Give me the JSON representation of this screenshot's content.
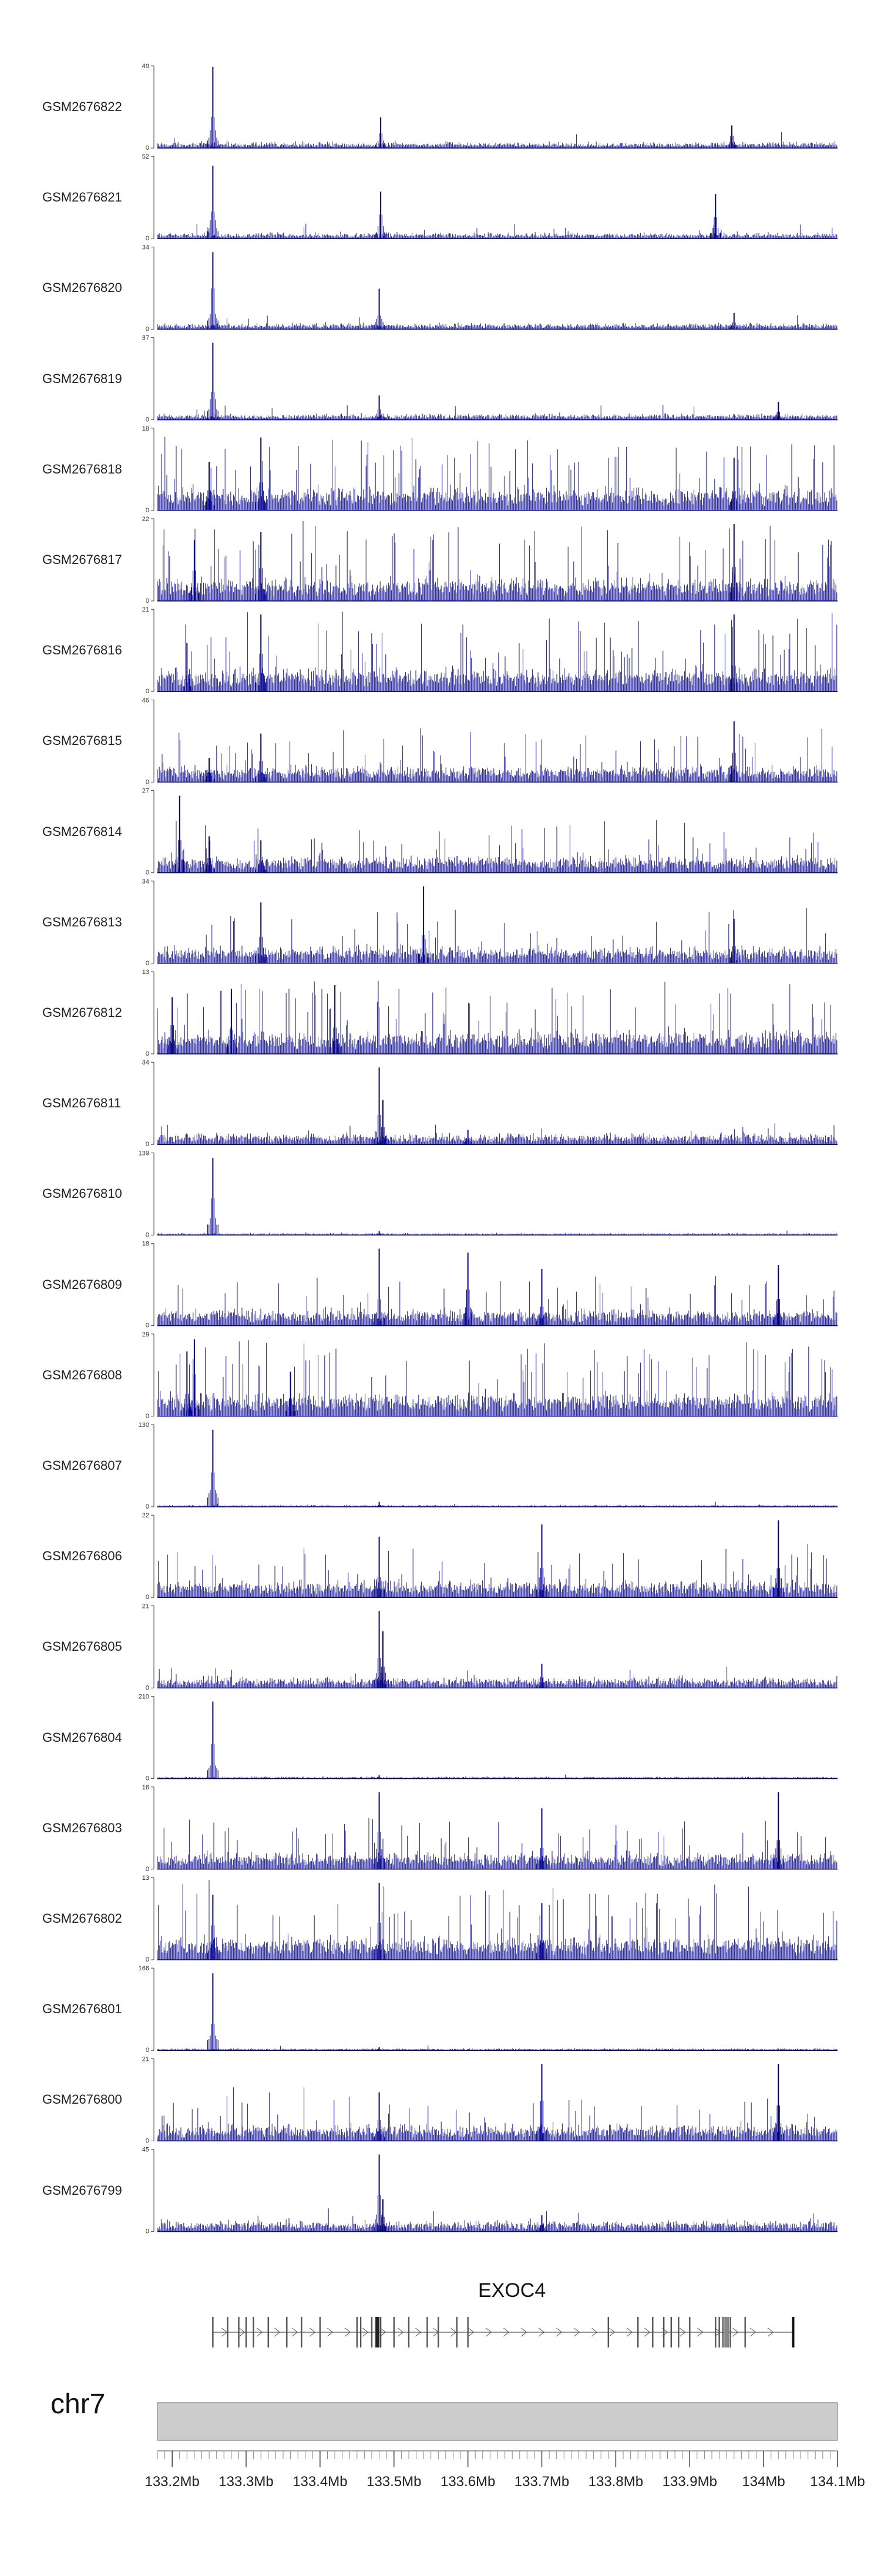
{
  "colors": {
    "signal": "#00008b",
    "axis": "#444444",
    "gene": "#555555",
    "ideogram_fill": "#cccccc",
    "ideogram_stroke": "#999999"
  },
  "chart_data": {
    "type": "area",
    "title": "",
    "xlabel": "",
    "ylabel": "",
    "chromosome": "chr7",
    "x_range_mb": [
      133.18,
      134.1
    ],
    "x_ticks": [
      133.2,
      133.3,
      133.4,
      133.5,
      133.6,
      133.7,
      133.8,
      133.9,
      134.0,
      134.1
    ],
    "x_tick_labels": [
      "133.2Mb",
      "133.3Mb",
      "133.4Mb",
      "133.5Mb",
      "133.6Mb",
      "133.7Mb",
      "133.8Mb",
      "133.9Mb",
      "134Mb",
      "134.1Mb"
    ],
    "tracks": [
      {
        "name": "GSM2676822",
        "ymax": 49,
        "ymax_label": "49",
        "ymin_label": "0",
        "pattern": "sparse",
        "peaks": [
          [
            133.255,
            1.0
          ],
          [
            133.482,
            0.38
          ],
          [
            133.957,
            0.28
          ]
        ]
      },
      {
        "name": "GSM2676821",
        "ymax": 52,
        "ymax_label": "52",
        "ymin_label": "0",
        "pattern": "sparse",
        "peaks": [
          [
            133.255,
            0.9
          ],
          [
            133.482,
            0.58
          ],
          [
            133.935,
            0.55
          ]
        ]
      },
      {
        "name": "GSM2676820",
        "ymax": 34,
        "ymax_label": "34",
        "ymin_label": "0",
        "pattern": "sparse",
        "peaks": [
          [
            133.255,
            0.95
          ],
          [
            133.48,
            0.5
          ],
          [
            133.96,
            0.2
          ]
        ]
      },
      {
        "name": "GSM2676819",
        "ymax": 37,
        "ymax_label": "37",
        "ymin_label": "0",
        "pattern": "sparse",
        "peaks": [
          [
            133.255,
            0.95
          ],
          [
            133.48,
            0.3
          ],
          [
            134.02,
            0.22
          ]
        ]
      },
      {
        "name": "GSM2676818",
        "ymax": 18,
        "ymax_label": "18",
        "ymin_label": "0",
        "pattern": "dense",
        "peaks": [
          [
            133.32,
            0.9
          ],
          [
            133.25,
            0.6
          ],
          [
            133.96,
            0.65
          ]
        ]
      },
      {
        "name": "GSM2676817",
        "ymax": 22,
        "ymax_label": "22",
        "ymin_label": "0",
        "pattern": "dense",
        "peaks": [
          [
            133.32,
            0.85
          ],
          [
            133.23,
            0.75
          ],
          [
            133.96,
            0.95
          ]
        ]
      },
      {
        "name": "GSM2676816",
        "ymax": 21,
        "ymax_label": "21",
        "ymin_label": "0",
        "pattern": "dense",
        "peaks": [
          [
            133.32,
            0.95
          ],
          [
            133.96,
            0.95
          ],
          [
            133.22,
            0.6
          ]
        ]
      },
      {
        "name": "GSM2676815",
        "ymax": 46,
        "ymax_label": "46",
        "ymin_label": "0",
        "pattern": "medium",
        "peaks": [
          [
            133.32,
            0.6
          ],
          [
            133.96,
            0.75
          ],
          [
            133.25,
            0.3
          ]
        ]
      },
      {
        "name": "GSM2676814",
        "ymax": 27,
        "ymax_label": "27",
        "ymin_label": "0",
        "pattern": "medium",
        "peaks": [
          [
            133.21,
            0.95
          ],
          [
            133.25,
            0.45
          ],
          [
            133.32,
            0.4
          ]
        ]
      },
      {
        "name": "GSM2676813",
        "ymax": 34,
        "ymax_label": "34",
        "ymin_label": "0",
        "pattern": "medium",
        "peaks": [
          [
            133.32,
            0.75
          ],
          [
            133.54,
            0.95
          ],
          [
            133.96,
            0.55
          ]
        ]
      },
      {
        "name": "GSM2676812",
        "ymax": 13,
        "ymax_label": "13",
        "ymin_label": "0",
        "pattern": "dense",
        "peaks": [
          [
            133.28,
            0.8
          ],
          [
            133.42,
            0.85
          ],
          [
            133.2,
            0.7
          ]
        ]
      },
      {
        "name": "GSM2676811",
        "ymax": 34,
        "ymax_label": "34",
        "ymin_label": "0",
        "pattern": "low",
        "peaks": [
          [
            133.48,
            0.95
          ],
          [
            133.485,
            0.55
          ],
          [
            133.6,
            0.18
          ]
        ]
      },
      {
        "name": "GSM2676810",
        "ymax": 139,
        "ymax_label": "139",
        "ymin_label": "0",
        "pattern": "flat",
        "peaks": [
          [
            133.255,
            0.95
          ],
          [
            133.48,
            0.05
          ]
        ]
      },
      {
        "name": "GSM2676809",
        "ymax": 18,
        "ymax_label": "18",
        "ymin_label": "0",
        "pattern": "medium",
        "peaks": [
          [
            133.48,
            0.95
          ],
          [
            133.6,
            0.9
          ],
          [
            133.7,
            0.7
          ],
          [
            134.02,
            0.75
          ]
        ]
      },
      {
        "name": "GSM2676808",
        "ymax": 29,
        "ymax_label": "29",
        "ymin_label": "0",
        "pattern": "dense",
        "peaks": [
          [
            133.23,
            0.95
          ],
          [
            133.22,
            0.8
          ],
          [
            133.36,
            0.55
          ]
        ]
      },
      {
        "name": "GSM2676807",
        "ymax": 130,
        "ymax_label": "130",
        "ymin_label": "0",
        "pattern": "flat",
        "peaks": [
          [
            133.255,
            0.95
          ],
          [
            133.48,
            0.06
          ]
        ]
      },
      {
        "name": "GSM2676806",
        "ymax": 22,
        "ymax_label": "22",
        "ymin_label": "0",
        "pattern": "medium",
        "peaks": [
          [
            133.48,
            0.75
          ],
          [
            133.7,
            0.9
          ],
          [
            134.02,
            0.95
          ]
        ]
      },
      {
        "name": "GSM2676805",
        "ymax": 21,
        "ymax_label": "21",
        "ymin_label": "0",
        "pattern": "low",
        "peaks": [
          [
            133.48,
            0.95
          ],
          [
            133.485,
            0.7
          ],
          [
            133.7,
            0.3
          ]
        ]
      },
      {
        "name": "GSM2676804",
        "ymax": 210,
        "ymax_label": "210",
        "ymin_label": "0",
        "pattern": "flat",
        "peaks": [
          [
            133.255,
            0.95
          ],
          [
            133.48,
            0.04
          ]
        ]
      },
      {
        "name": "GSM2676803",
        "ymax": 16,
        "ymax_label": "16",
        "ymin_label": "0",
        "pattern": "medium",
        "peaks": [
          [
            133.48,
            0.95
          ],
          [
            133.7,
            0.75
          ],
          [
            134.02,
            0.95
          ]
        ]
      },
      {
        "name": "GSM2676802",
        "ymax": 13,
        "ymax_label": "13",
        "ymin_label": "0",
        "pattern": "dense",
        "peaks": [
          [
            133.48,
            0.95
          ],
          [
            133.255,
            0.8
          ],
          [
            133.7,
            0.7
          ]
        ]
      },
      {
        "name": "GSM2676801",
        "ymax": 166,
        "ymax_label": "166",
        "ymin_label": "0",
        "pattern": "flat",
        "peaks": [
          [
            133.255,
            0.95
          ],
          [
            133.48,
            0.04
          ]
        ]
      },
      {
        "name": "GSM2676800",
        "ymax": 21,
        "ymax_label": "21",
        "ymin_label": "0",
        "pattern": "medium",
        "peaks": [
          [
            133.7,
            0.95
          ],
          [
            134.02,
            0.95
          ],
          [
            133.48,
            0.6
          ]
        ]
      },
      {
        "name": "GSM2676799",
        "ymax": 45,
        "ymax_label": "45",
        "ymin_label": "0",
        "pattern": "low",
        "peaks": [
          [
            133.48,
            0.95
          ],
          [
            133.485,
            0.4
          ],
          [
            133.7,
            0.2
          ]
        ]
      }
    ],
    "gene": {
      "name": "EXOC4",
      "start_mb": 133.255,
      "end_mb": 134.04,
      "strand": "+",
      "exons_mb": [
        133.255,
        133.275,
        133.29,
        133.3,
        133.31,
        133.33,
        133.355,
        133.375,
        133.4,
        133.45,
        133.455,
        133.47,
        133.475,
        133.478,
        133.482,
        133.5,
        133.52,
        133.545,
        133.56,
        133.585,
        133.6,
        133.79,
        133.83,
        133.85,
        133.865,
        133.875,
        133.885,
        133.9,
        133.935,
        133.94,
        133.945,
        133.95,
        133.955,
        133.975,
        134.04
      ]
    }
  }
}
